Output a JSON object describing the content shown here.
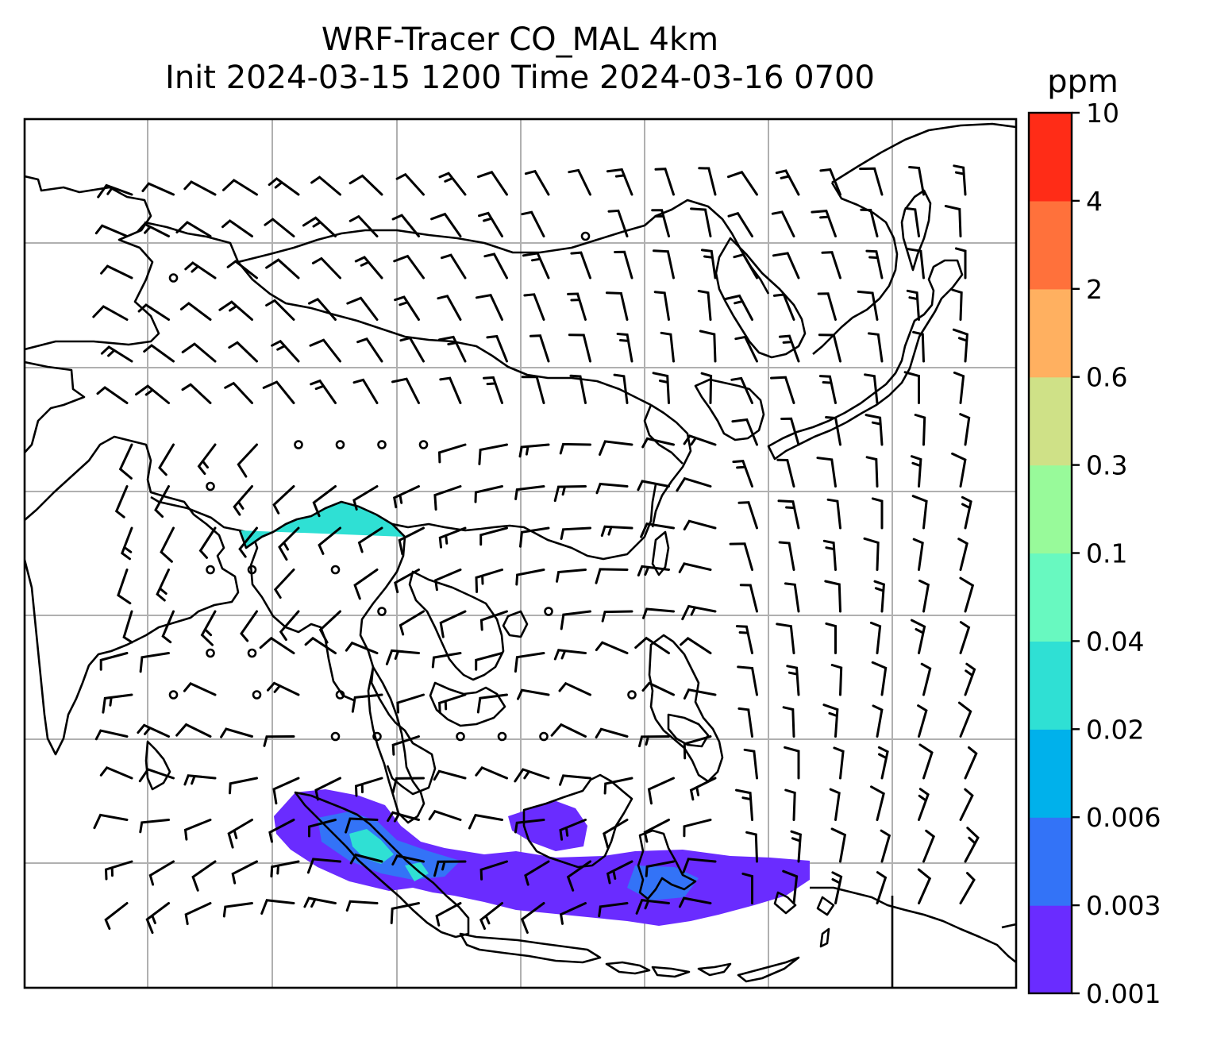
{
  "title": {
    "line1": "WRF-Tracer CO_MAL 4km",
    "line2": "Init 2024-03-15 1200 Time 2024-03-16 0700"
  },
  "colorbar": {
    "unit": "ppm",
    "levels": [
      "0.001",
      "0.003",
      "0.006",
      "0.02",
      "0.04",
      "0.1",
      "0.3",
      "0.6",
      "2",
      "4",
      "10"
    ],
    "colors": [
      "#6a2cff",
      "#3373f7",
      "#00b1eb",
      "#2fe0d4",
      "#68f9c0",
      "#98fa9a",
      "#cfe187",
      "#ffb060",
      "#ff713b",
      "#ff2c17"
    ]
  },
  "map": {
    "background": "#ffffff",
    "gridline_color": "#b0b0b0",
    "coastline_color": "#000000",
    "plume_colors": {
      "outer": "#6a2cff",
      "mid": "#3373f7",
      "inner": "#2fe0d4"
    }
  }
}
